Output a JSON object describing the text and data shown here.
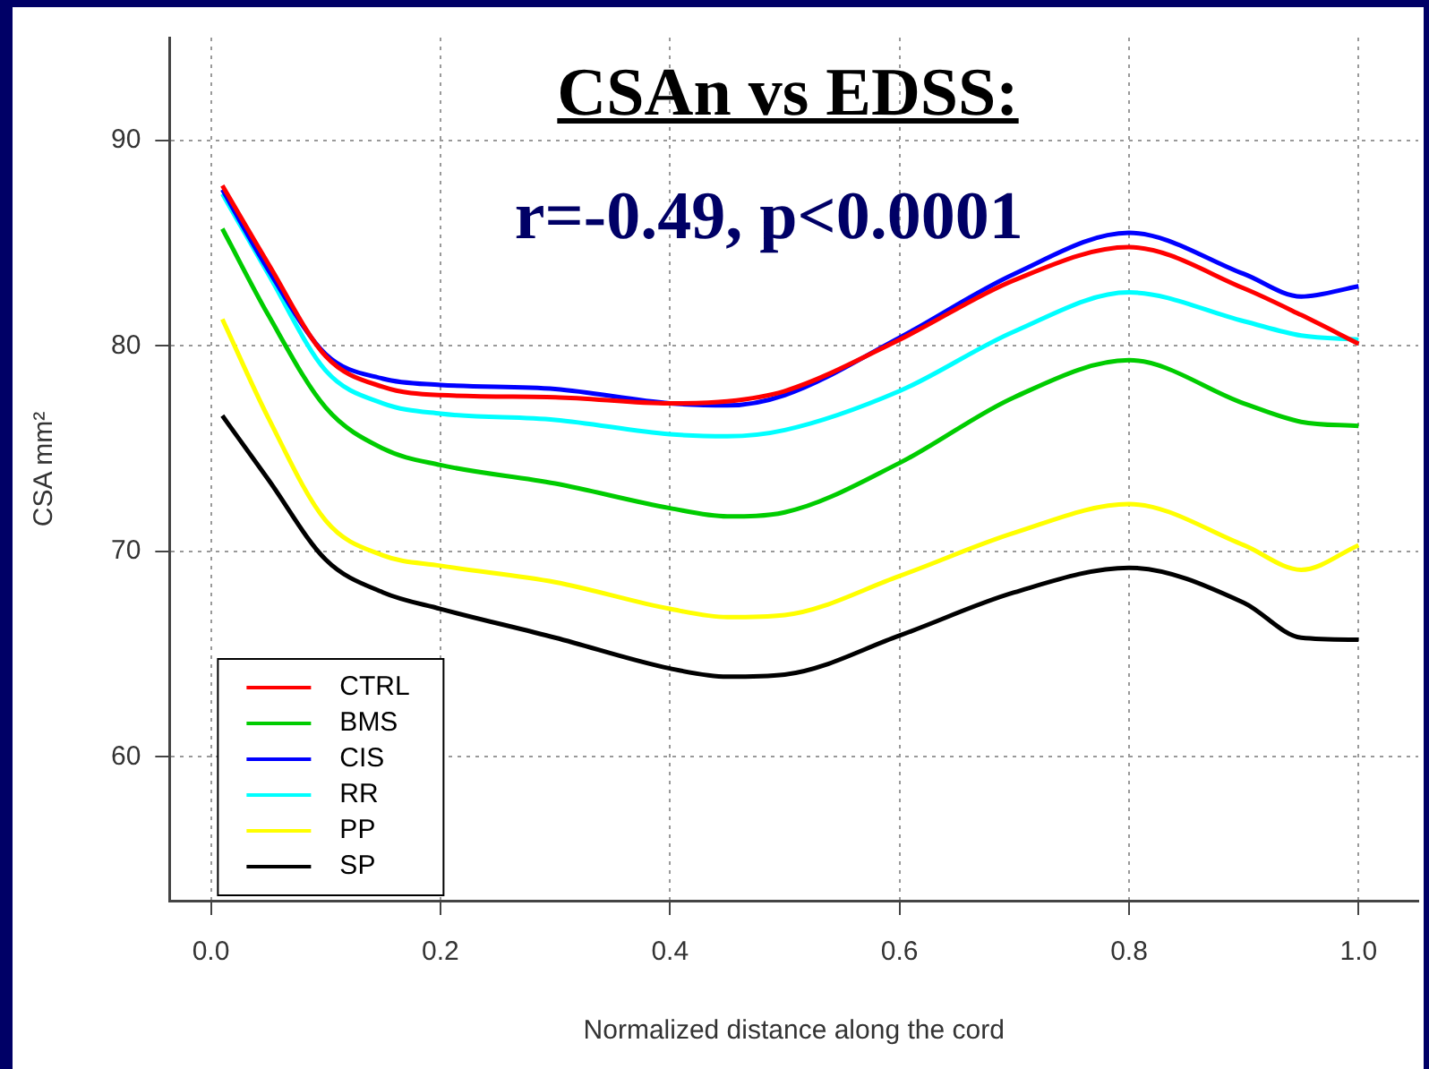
{
  "chart_data": {
    "type": "line",
    "title": "CSAn vs EDSS:",
    "subtitle": "r=-0.49, p<0.0001",
    "xlabel": "Normalized distance along the cord",
    "ylabel": "CSA mm²",
    "x": [
      0.01,
      0.05,
      0.1,
      0.15,
      0.2,
      0.3,
      0.4,
      0.45,
      0.5,
      0.6,
      0.7,
      0.8,
      0.9,
      0.95,
      1.0
    ],
    "series": [
      {
        "name": "CTRL",
        "color": "#ff0000",
        "values": [
          87.8,
          84,
          79.5,
          78,
          77.6,
          77.5,
          77.2,
          77.3,
          77.8,
          80.3,
          83.2,
          84.8,
          82.8,
          81.5,
          80.1
        ]
      },
      {
        "name": "BMS",
        "color": "#00cc00",
        "values": [
          85.7,
          81.5,
          77,
          75,
          74.2,
          73.3,
          72.1,
          71.7,
          71.9,
          74.3,
          77.5,
          79.3,
          77.2,
          76.3,
          76.1
        ]
      },
      {
        "name": "CIS",
        "color": "#0000ff",
        "values": [
          87.6,
          83.7,
          79.6,
          78.4,
          78.1,
          77.9,
          77.2,
          77.1,
          77.6,
          80.4,
          83.5,
          85.5,
          83.5,
          82.4,
          82.9
        ]
      },
      {
        "name": "RR",
        "color": "#00ffff",
        "values": [
          87.4,
          83.5,
          78.8,
          77.2,
          76.7,
          76.4,
          75.7,
          75.6,
          75.9,
          77.8,
          80.7,
          82.6,
          81.2,
          80.5,
          80.3
        ]
      },
      {
        "name": "PP",
        "color": "#ffff00",
        "values": [
          81.3,
          76.5,
          71.5,
          69.8,
          69.3,
          68.5,
          67.2,
          66.8,
          66.9,
          68.8,
          70.9,
          72.3,
          70.3,
          69.1,
          70.3
        ]
      },
      {
        "name": "SP",
        "color": "#000000",
        "values": [
          76.6,
          73.5,
          69.6,
          68,
          67.2,
          65.8,
          64.3,
          63.9,
          64,
          65.9,
          68,
          69.2,
          67.5,
          65.8,
          65.7
        ]
      }
    ],
    "xlim": [
      -0.036,
      1.052
    ],
    "ylim": [
      53,
      95
    ],
    "xticks": [
      {
        "value": 0,
        "label": "0.0"
      },
      0.2,
      0.4,
      0.6,
      0.8,
      {
        "value": 1,
        "label": "1.0"
      }
    ],
    "yticks": [
      60,
      70,
      80,
      90
    ],
    "grid": true,
    "legend": "bottom left",
    "marker": "none",
    "line_style": "solid"
  }
}
